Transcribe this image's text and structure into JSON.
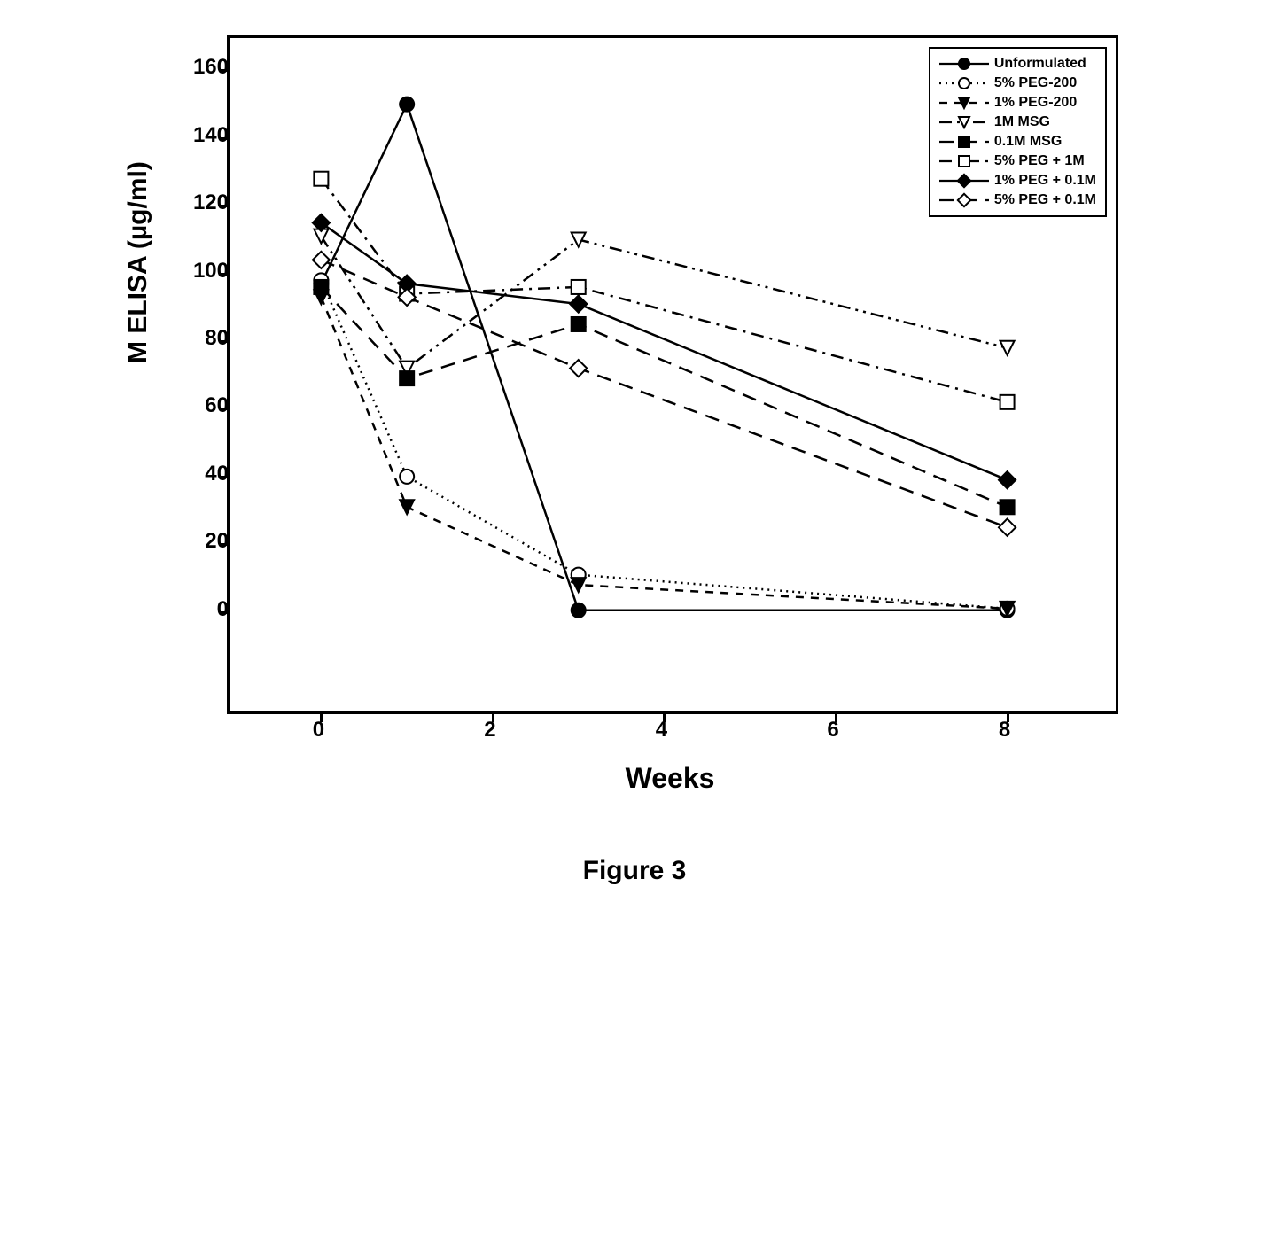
{
  "caption": "Figure 3",
  "chart": {
    "type": "line",
    "xlabel": "Weeks",
    "ylabel": "M ELISA (µg/ml)",
    "xlim": [
      -0.5,
      8.8
    ],
    "ylim": [
      -15,
      163
    ],
    "xticks": [
      0,
      2,
      4,
      6,
      8
    ],
    "yticks": [
      0,
      20,
      40,
      60,
      80,
      100,
      120,
      140,
      160
    ],
    "background_color": "#ffffff",
    "border_color": "#000000",
    "label_fontsize": 30,
    "tick_fontsize": 24,
    "line_width": 2.5,
    "marker_size": 8,
    "series": [
      {
        "name": "Unformulated",
        "x": [
          0,
          1,
          3,
          8
        ],
        "y": [
          97,
          150,
          0.5,
          0.5
        ],
        "color": "#000000",
        "dash": "solid",
        "marker": "circle-filled"
      },
      {
        "name": "5% PEG-200",
        "x": [
          0,
          1,
          3,
          8
        ],
        "y": [
          98,
          40,
          11,
          1
        ],
        "color": "#000000",
        "dash": "dot",
        "marker": "circle-open"
      },
      {
        "name": "1% PEG-200",
        "x": [
          0,
          1,
          3,
          8
        ],
        "y": [
          93,
          31,
          8,
          1
        ],
        "color": "#000000",
        "dash": "dash",
        "marker": "triangle-down-filled"
      },
      {
        "name": "1M MSG",
        "x": [
          0,
          1,
          3,
          8
        ],
        "y": [
          111,
          72,
          110,
          78
        ],
        "color": "#000000",
        "dash": "dash-dot-dot",
        "marker": "triangle-down-open"
      },
      {
        "name": "0.1M MSG",
        "x": [
          0,
          1,
          3,
          8
        ],
        "y": [
          96,
          69,
          85,
          31
        ],
        "color": "#000000",
        "dash": "long-dash",
        "marker": "square-filled"
      },
      {
        "name": "5% PEG + 1M",
        "x": [
          0,
          1,
          3,
          8
        ],
        "y": [
          128,
          94,
          96,
          62
        ],
        "color": "#000000",
        "dash": "dash-dot",
        "marker": "square-open"
      },
      {
        "name": "1% PEG + 0.1M",
        "x": [
          0,
          1,
          3,
          8
        ],
        "y": [
          115,
          97,
          91,
          39
        ],
        "color": "#000000",
        "dash": "solid",
        "marker": "diamond-filled"
      },
      {
        "name": "5% PEG + 0.1M",
        "x": [
          0,
          1,
          3,
          8
        ],
        "y": [
          104,
          93,
          72,
          25
        ],
        "color": "#000000",
        "dash": "long-dash",
        "marker": "diamond-open"
      }
    ]
  }
}
